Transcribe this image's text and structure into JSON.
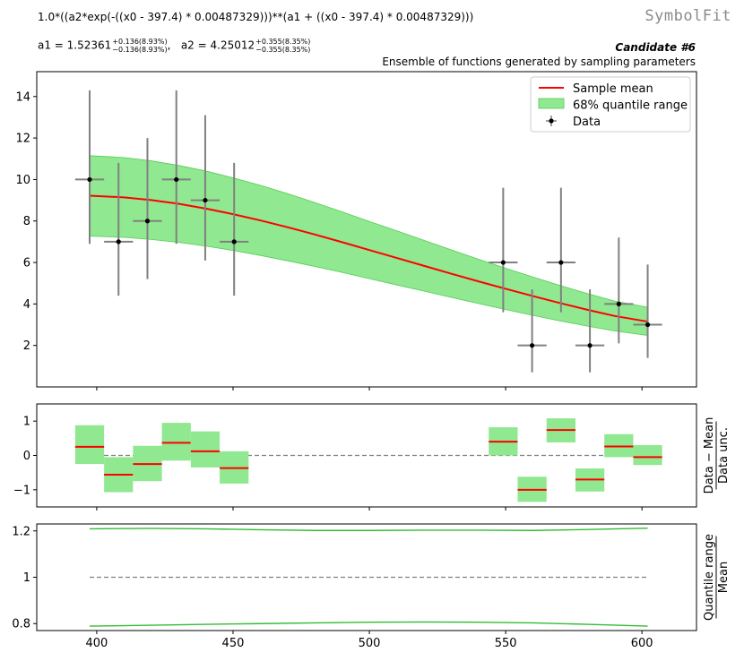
{
  "header": {
    "brand": "SymbolFit",
    "formula": "1.0*((a2*exp(-((x0 - 397.4) * 0.00487329)))**(a1 + ((x0 - 397.4) * 0.00487329)))",
    "params": {
      "a1_label": "a1 = 1.52361",
      "a1_up": "+0.136(8.93%)",
      "a1_down": "−0.136(8.93%)",
      "a2_label": "a2 = 4.25012",
      "a2_up": "+0.355(8.35%)",
      "a2_down": "−0.355(8.35%)"
    },
    "candidate": "Candidate #6",
    "subtitle": "Ensemble of functions generated by sampling parameters"
  },
  "colors": {
    "mean": "#ff0000",
    "band_fill": "#90e890",
    "band_edge": "#55cc55",
    "ratio_line": "#33bb33",
    "errorbar": "#808080",
    "dashed": "#808080"
  },
  "chart_data": [
    {
      "type": "line",
      "panel": "main",
      "xlim": [
        378,
        620
      ],
      "ylim": [
        0,
        15.2
      ],
      "yticks": [
        "2",
        "4",
        "6",
        "8",
        "10",
        "12",
        "14"
      ],
      "legend": {
        "position": "top-right",
        "entries": [
          "Sample mean",
          "68% quantile range",
          "Data"
        ]
      },
      "data_points": [
        {
          "x": 397.4,
          "y": 10,
          "xerr": 5.3,
          "yerr": [
            3.1,
            4.3
          ]
        },
        {
          "x": 408,
          "y": 7,
          "xerr": 5.3,
          "yerr": [
            2.6,
            3.8
          ]
        },
        {
          "x": 418.6,
          "y": 8,
          "xerr": 5.3,
          "yerr": [
            2.8,
            4.0
          ]
        },
        {
          "x": 429.2,
          "y": 10,
          "xerr": 5.3,
          "yerr": [
            3.1,
            4.3
          ]
        },
        {
          "x": 439.8,
          "y": 9,
          "xerr": 5.3,
          "yerr": [
            2.9,
            4.1
          ]
        },
        {
          "x": 450.4,
          "y": 7,
          "xerr": 5.3,
          "yerr": [
            2.6,
            3.8
          ]
        },
        {
          "x": 549.1,
          "y": 6,
          "xerr": 5.3,
          "yerr": [
            2.4,
            3.6
          ]
        },
        {
          "x": 559.7,
          "y": 2,
          "xerr": 5.3,
          "yerr": [
            1.3,
            2.7
          ]
        },
        {
          "x": 570.3,
          "y": 6,
          "xerr": 5.3,
          "yerr": [
            2.4,
            3.6
          ]
        },
        {
          "x": 580.9,
          "y": 2,
          "xerr": 5.3,
          "yerr": [
            1.3,
            2.7
          ]
        },
        {
          "x": 591.5,
          "y": 4,
          "xerr": 5.3,
          "yerr": [
            1.9,
            3.2
          ]
        },
        {
          "x": 602.1,
          "y": 3,
          "xerr": 5.3,
          "yerr": [
            1.6,
            2.9
          ]
        }
      ],
      "mean_curve": {
        "x": [
          397.4,
          410,
          420,
          430,
          440,
          450,
          460,
          470,
          480,
          490,
          500,
          510,
          520,
          530,
          540,
          550,
          560,
          570,
          580,
          590,
          602.1
        ],
        "y": [
          9.22,
          9.14,
          9.01,
          8.83,
          8.6,
          8.33,
          8.03,
          7.7,
          7.35,
          6.98,
          6.6,
          6.22,
          5.84,
          5.46,
          5.09,
          4.73,
          4.38,
          4.04,
          3.72,
          3.42,
          3.15
        ]
      },
      "band": {
        "x": [
          397.4,
          410,
          420,
          430,
          440,
          450,
          460,
          470,
          480,
          490,
          500,
          510,
          520,
          530,
          540,
          550,
          560,
          570,
          580,
          590,
          602.1
        ],
        "upper": [
          11.15,
          11.06,
          10.9,
          10.68,
          10.41,
          10.08,
          9.72,
          9.32,
          8.89,
          8.44,
          7.98,
          7.53,
          7.07,
          6.61,
          6.16,
          5.72,
          5.3,
          4.89,
          4.5,
          4.14,
          3.84
        ],
        "lower": [
          7.27,
          7.21,
          7.11,
          6.97,
          6.79,
          6.58,
          6.34,
          6.08,
          5.81,
          5.52,
          5.22,
          4.92,
          4.62,
          4.32,
          4.02,
          3.73,
          3.45,
          3.18,
          2.93,
          2.7,
          2.48
        ]
      }
    },
    {
      "type": "bar",
      "panel": "residual",
      "ylabel_num": "Data − Mean",
      "ylabel_den": "Data unc.",
      "ylim": [
        -1.5,
        1.5
      ],
      "yticks": [
        "1",
        "0",
        "−1"
      ],
      "x": [
        397.4,
        408,
        418.6,
        429.2,
        439.8,
        450.4,
        549.1,
        559.7,
        570.3,
        580.9,
        591.5,
        602.1
      ],
      "mean": [
        0.25,
        -0.56,
        -0.25,
        0.37,
        0.12,
        -0.37,
        0.4,
        -1.0,
        0.74,
        -0.7,
        0.26,
        -0.05
      ],
      "upper": [
        0.88,
        -0.05,
        0.28,
        0.95,
        0.7,
        0.12,
        0.82,
        -0.62,
        1.08,
        -0.38,
        0.62,
        0.3
      ],
      "lower": [
        -0.25,
        -1.07,
        -0.75,
        -0.15,
        -0.35,
        -0.82,
        0.0,
        -1.35,
        0.38,
        -1.05,
        -0.05,
        -0.28
      ]
    },
    {
      "type": "line",
      "panel": "ratio",
      "ylabel_num": "Quantile range",
      "ylabel_den": "Mean",
      "ylim": [
        0.77,
        1.23
      ],
      "yticks": [
        "1.2",
        "1",
        "0.8"
      ],
      "xticks": [
        "400",
        "450",
        "500",
        "550",
        "600"
      ],
      "x": [
        397.4,
        420,
        440,
        460,
        480,
        500,
        520,
        540,
        560,
        580,
        602.1
      ],
      "upper": [
        1.209,
        1.211,
        1.209,
        1.205,
        1.202,
        1.202,
        1.203,
        1.203,
        1.202,
        1.206,
        1.212
      ],
      "lower": [
        0.789,
        0.793,
        0.797,
        0.8,
        0.803,
        0.806,
        0.807,
        0.806,
        0.803,
        0.797,
        0.789
      ]
    }
  ]
}
